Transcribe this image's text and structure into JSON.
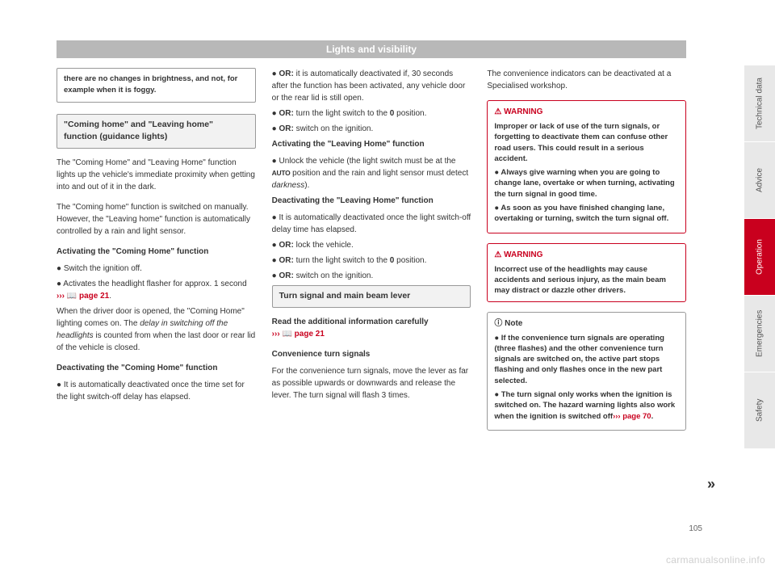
{
  "header": "Lights and visibility",
  "pageNumber": "105",
  "watermark": "carmanualsonline.info",
  "continueMark": "»",
  "tabs": [
    "Technical data",
    "Advice",
    "Operation",
    "Emergencies",
    "Safety"
  ],
  "col1": {
    "introNote": "there are no changes in brightness, and not, for example when it is foggy.",
    "sec1Header": "\"Coming home\" and \"Leaving home\" function (guidance lights)",
    "p1": "The \"Coming Home\" and \"Leaving Home\" function lights up the vehicle's immediate proximity when getting into and out of it in the dark.",
    "p2": "The \"Coming home\" function is switched on manually. However, the \"Leaving home\" function is automatically controlled by a rain and light sensor.",
    "sub1": "Activating the \"Coming Home\" function",
    "b1": "Switch the ignition off.",
    "b2a": "Activates the headlight flasher for approx. 1 second ",
    "b2ref": "››› 📖 page 21",
    "b2b": ".",
    "p3a": "When the driver door is opened, the \"Coming Home\" lighting comes on. The ",
    "p3i": "delay in switching off the headlights",
    "p3b": " is counted from when the last door or rear lid of the vehicle is closed.",
    "sub2": "Deactivating the \"Coming Home\" function",
    "b3": "It is automatically deactivated once the time set for the light switch-off delay has elapsed."
  },
  "col2": {
    "b1a": "OR:",
    "b1b": " it is automatically deactivated if, 30 seconds after the function has been activated, any vehicle door or the rear lid is still open.",
    "b2a": "OR:",
    "b2b": " turn the light switch to the ",
    "b2c": "0",
    "b2d": " position.",
    "b3a": "OR:",
    "b3b": " switch on the ignition.",
    "sub1": "Activating the \"Leaving Home\" function",
    "b4a": "Unlock the vehicle (the light switch must be at the ",
    "b4auto": "AUTO",
    "b4b": " position and the rain and light sensor must detect ",
    "b4i": "darkness",
    "b4c": ").",
    "sub2": "Deactivating the \"Leaving Home\" function",
    "b5": "It is automatically deactivated once the light switch-off delay time has elapsed.",
    "b6a": "OR:",
    "b6b": " lock the vehicle.",
    "b7a": "OR:",
    "b7b": " turn the light switch to the ",
    "b7c": "0",
    "b7d": " position.",
    "b8a": "OR:",
    "b8b": " switch on the ignition.",
    "sec2Header": "Turn signal and main beam lever",
    "p1a": "Read the additional information carefully ",
    "p1ref": "››› 📖 page 21",
    "sub3": "Convenience turn signals",
    "p2": "For the convenience turn signals, move the lever as far as possible upwards or downwards and release the lever. The turn signal will flash 3 times."
  },
  "col3": {
    "p1": "The convenience indicators can be deactivated at a Specialised workshop.",
    "warn1Header": "WARNING",
    "warn1": {
      "a": "Improper or lack of use of the turn signals, or forgetting to deactivate them can confuse other road users. This could result in a serious accident.",
      "b": "Always give warning when you are going to change lane, overtake or when turning, activating the turn signal in good time.",
      "c": "As soon as you have finished changing lane, overtaking or turning, switch the turn signal off."
    },
    "warn2Header": "WARNING",
    "warn2": "Incorrect use of the headlights may cause accidents and serious injury, as the main beam may distract or dazzle other drivers.",
    "noteHeader": "Note",
    "note": {
      "a": "If the convenience turn signals are operating (three flashes) and the other convenience turn signals are switched on, the active part stops flashing and only flashes once in the new part selected.",
      "b1": "The turn signal only works when the ignition is switched on. The hazard warning lights also work when the ignition is switched off",
      "bref": "››› page 70",
      "b2": "."
    }
  }
}
